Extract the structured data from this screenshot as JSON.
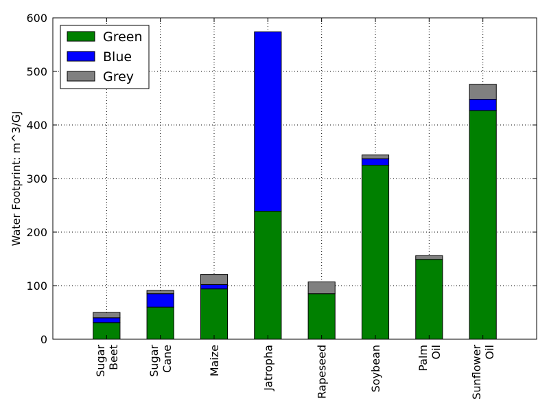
{
  "chart_data": {
    "type": "bar",
    "stacked": true,
    "categories": [
      [
        "Sugar",
        "Beet"
      ],
      [
        "Sugar",
        "Cane"
      ],
      [
        "Maize"
      ],
      [
        "Jatropha"
      ],
      [
        "Rapeseed"
      ],
      [
        "Soybean"
      ],
      [
        "Palm",
        "Oil"
      ],
      [
        "Sunflower",
        "Oil"
      ]
    ],
    "series": [
      {
        "name": "Green",
        "color": "#008000",
        "values": [
          31,
          60,
          94,
          239,
          85,
          325,
          149,
          427
        ]
      },
      {
        "name": "Blue",
        "color": "#0000ff",
        "values": [
          9,
          25,
          8,
          335,
          0,
          12,
          0,
          21
        ]
      },
      {
        "name": "Grey",
        "color": "#808080",
        "values": [
          10,
          6,
          19,
          0,
          22,
          7,
          7,
          28
        ]
      }
    ],
    "title": "",
    "xlabel": "",
    "ylabel": "Water Footprint: m^3/GJ",
    "ylim": [
      0,
      600
    ],
    "yticks": [
      0,
      100,
      200,
      300,
      400,
      500,
      600
    ],
    "grid": true,
    "legend_position": "top-left"
  }
}
